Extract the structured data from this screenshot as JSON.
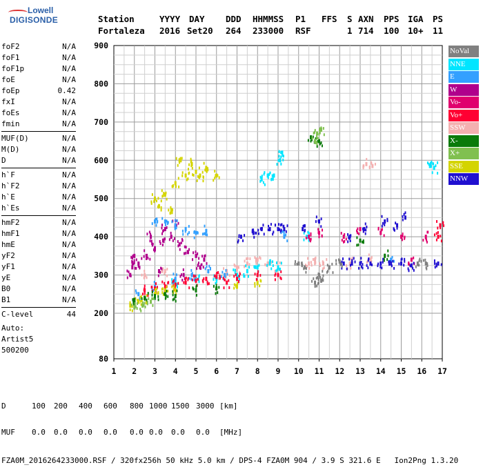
{
  "logo": {
    "line1": "Lowell",
    "line2": "DIGISONDE"
  },
  "header": {
    "row1": [
      "Station",
      "YYYY",
      "DAY",
      "DDD",
      "HHMMSS",
      "P1",
      "FFS",
      "S",
      "AXN",
      "PPS",
      "IGA",
      "PS"
    ],
    "row2": [
      "Fortaleza",
      "2016",
      "Set20",
      "264",
      "233000",
      "RSF",
      "1",
      "714",
      "100",
      "10+",
      "11"
    ]
  },
  "params": {
    "group1": [
      {
        "label": "foF2",
        "value": "N/A"
      },
      {
        "label": "foF1",
        "value": "N/A"
      },
      {
        "label": "foF1p",
        "value": "N/A"
      },
      {
        "label": "foE",
        "value": "N/A"
      },
      {
        "label": "foEp",
        "value": "0.42"
      },
      {
        "label": "fxI",
        "value": "N/A"
      },
      {
        "label": "foEs",
        "value": "N/A"
      },
      {
        "label": "fmin",
        "value": "N/A"
      }
    ],
    "group2": [
      {
        "label": "MUF(D)",
        "value": "N/A"
      },
      {
        "label": "M(D)",
        "value": "N/A"
      },
      {
        "label": "D",
        "value": "N/A"
      }
    ],
    "group3": [
      {
        "label": "h`F",
        "value": "N/A"
      },
      {
        "label": "h`F2",
        "value": "N/A"
      },
      {
        "label": "h`E",
        "value": "N/A"
      },
      {
        "label": "h`Es",
        "value": "N/A"
      }
    ],
    "group4": [
      {
        "label": "hmF2",
        "value": "N/A"
      },
      {
        "label": "hmF1",
        "value": "N/A"
      },
      {
        "label": "hmE",
        "value": "N/A"
      },
      {
        "label": "yF2",
        "value": "N/A"
      },
      {
        "label": "yF1",
        "value": "N/A"
      },
      {
        "label": "yE",
        "value": "N/A"
      },
      {
        "label": "B0",
        "value": "N/A"
      },
      {
        "label": "B1",
        "value": "N/A"
      }
    ],
    "clevel": {
      "label": "C-level",
      "value": "44"
    },
    "auto": [
      "Auto:",
      "Artist5",
      "500200"
    ]
  },
  "legend": [
    {
      "label": "NoVal",
      "bg": "#808080",
      "fg": "#ffffff"
    },
    {
      "label": "NNE",
      "bg": "#00e5ff",
      "fg": "#ffffff"
    },
    {
      "label": "E",
      "bg": "#33a0ff",
      "fg": "#ffffff"
    },
    {
      "label": "W",
      "bg": "#b0008c",
      "fg": "#ffffff"
    },
    {
      "label": "Vo-",
      "bg": "#e0006e",
      "fg": "#ffffff"
    },
    {
      "label": "Vo+",
      "bg": "#ff0033",
      "fg": "#ffffff"
    },
    {
      "label": "SSW",
      "bg": "#f4b0b0",
      "fg": "#ffffff"
    },
    {
      "label": "X-",
      "bg": "#0a7a0a",
      "fg": "#ffffff"
    },
    {
      "label": "X+",
      "bg": "#80c050",
      "fg": "#ffffff"
    },
    {
      "label": "SSE",
      "bg": "#d4d400",
      "fg": "#ffffff"
    },
    {
      "label": "NNW",
      "bg": "#2010d0",
      "fg": "#ffffff"
    }
  ],
  "bottom": {
    "row1": [
      "D",
      "100",
      "200",
      "400",
      "600",
      "800",
      "1000",
      "1500",
      "3000",
      "[km]"
    ],
    "row2": [
      "MUF",
      "0.0",
      "0.0",
      "0.0",
      "0.0",
      "0.0",
      "0.0",
      "0.0",
      "0.0",
      "[MHz]"
    ],
    "footer": "FZA0M_2016264233000.RSF / 320fx256h 50 kHz 5.0 km / DPS-4 FZA0M 904 / 3.9 S 321.6 E   Ion2Png 1.3.20"
  },
  "chart_data": {
    "type": "scatter",
    "x_ticks": [
      "1",
      "2",
      "3",
      "4",
      "5",
      "6",
      "7",
      "8",
      "9",
      "10",
      "11",
      "12",
      "13",
      "14",
      "15",
      "16",
      "17"
    ],
    "y_ticks": [
      "80",
      "200",
      "300",
      "400",
      "500",
      "600",
      "700",
      "800",
      "900"
    ],
    "xlim": [
      1,
      17
    ],
    "ylim": [
      80,
      900
    ],
    "y_scale": "non-linear (80 at bottom, 200..900 evenly spaced)",
    "grid": true,
    "legend_placement": "right",
    "clusters": [
      {
        "name": "W",
        "color": "#b0008c",
        "points": [
          [
            1.8,
            300
          ],
          [
            2.2,
            330
          ],
          [
            2.6,
            350
          ],
          [
            3.0,
            370
          ],
          [
            3.4,
            390
          ],
          [
            3.8,
            400
          ],
          [
            4.2,
            380
          ],
          [
            4.6,
            360
          ],
          [
            5.0,
            350
          ],
          [
            5.4,
            340
          ],
          [
            2.0,
            350
          ],
          [
            2.8,
            400
          ],
          [
            3.5,
            420
          ],
          [
            4.0,
            430
          ],
          [
            1.9,
            320
          ],
          [
            3.2,
            310
          ],
          [
            4.4,
            300
          ],
          [
            5.2,
            320
          ]
        ]
      },
      {
        "name": "SSW",
        "color": "#f4b0b0",
        "points": [
          [
            6,
            300
          ],
          [
            6.5,
            310
          ],
          [
            7,
            320
          ],
          [
            7.5,
            330
          ],
          [
            8,
            340
          ],
          [
            8.5,
            330
          ],
          [
            9,
            320
          ],
          [
            10.5,
            330
          ],
          [
            10.8,
            340
          ],
          [
            11.2,
            330
          ],
          [
            12.5,
            330
          ],
          [
            13.5,
            340
          ],
          [
            13.3,
            590
          ],
          [
            13.6,
            585
          ],
          [
            2.5,
            300
          ],
          [
            3.5,
            310
          ]
        ]
      },
      {
        "name": "NNE",
        "color": "#00e5ff",
        "points": [
          [
            4,
            280
          ],
          [
            5,
            290
          ],
          [
            6,
            290
          ],
          [
            7,
            300
          ],
          [
            7.5,
            310
          ],
          [
            8,
            320
          ],
          [
            8.6,
            330
          ],
          [
            9,
            320
          ],
          [
            8.2,
            550
          ],
          [
            8.5,
            560
          ],
          [
            8.8,
            560
          ],
          [
            9.2,
            620
          ],
          [
            9.1,
            600
          ],
          [
            16.4,
            585
          ],
          [
            16.6,
            580
          ],
          [
            10.4,
            400
          ]
        ]
      },
      {
        "name": "E",
        "color": "#33a0ff",
        "points": [
          [
            2.2,
            250
          ],
          [
            3,
            270
          ],
          [
            4,
            290
          ],
          [
            4.8,
            300
          ],
          [
            5.6,
            310
          ],
          [
            6.4,
            300
          ],
          [
            3,
            440
          ],
          [
            3.5,
            440
          ],
          [
            4,
            430
          ],
          [
            4.5,
            420
          ],
          [
            5,
            410
          ],
          [
            5.5,
            415
          ],
          [
            9.3,
            400
          ],
          [
            14.5,
            340
          ]
        ]
      },
      {
        "name": "Vo+",
        "color": "#ff0033",
        "points": [
          [
            2.5,
            260
          ],
          [
            3,
            265
          ],
          [
            3.5,
            270
          ],
          [
            4,
            275
          ],
          [
            4.5,
            280
          ],
          [
            5,
            285
          ],
          [
            5.5,
            290
          ],
          [
            6,
            295
          ],
          [
            6.5,
            280
          ],
          [
            7,
            290
          ],
          [
            8,
            300
          ],
          [
            9,
            300
          ],
          [
            16.8,
            400
          ],
          [
            16.9,
            430
          ]
        ]
      },
      {
        "name": "Vo-",
        "color": "#e0006e",
        "points": [
          [
            10.5,
            400
          ],
          [
            11,
            410
          ],
          [
            12.2,
            400
          ],
          [
            13,
            420
          ],
          [
            14,
            410
          ],
          [
            15,
            400
          ],
          [
            15.5,
            340
          ],
          [
            16.2,
            400
          ]
        ]
      },
      {
        "name": "SSE",
        "color": "#d4d400",
        "points": [
          [
            1.8,
            220
          ],
          [
            2.2,
            230
          ],
          [
            2.5,
            240
          ],
          [
            3,
            250
          ],
          [
            3.5,
            260
          ],
          [
            4,
            260
          ],
          [
            3,
            500
          ],
          [
            3.5,
            510
          ],
          [
            4,
            540
          ],
          [
            4.5,
            560
          ],
          [
            5,
            570
          ],
          [
            5.5,
            580
          ],
          [
            4.2,
            600
          ],
          [
            4.8,
            590
          ],
          [
            5.2,
            560
          ],
          [
            6,
            560
          ],
          [
            3.8,
            470
          ],
          [
            3.2,
            480
          ],
          [
            7,
            270
          ],
          [
            8,
            280
          ]
        ]
      },
      {
        "name": "X-",
        "color": "#0a7a0a",
        "points": [
          [
            2,
            235
          ],
          [
            2.5,
            240
          ],
          [
            3,
            245
          ],
          [
            3.5,
            250
          ],
          [
            4,
            245
          ],
          [
            5,
            260
          ],
          [
            6,
            265
          ],
          [
            10.6,
            660
          ],
          [
            11,
            650
          ],
          [
            13,
            390
          ],
          [
            14.2,
            350
          ]
        ]
      },
      {
        "name": "X+",
        "color": "#80c050",
        "points": [
          [
            2,
            215
          ],
          [
            2.4,
            220
          ],
          [
            2.8,
            230
          ],
          [
            10.8,
            650
          ],
          [
            10.9,
            670
          ],
          [
            11.1,
            680
          ]
        ]
      },
      {
        "name": "NNW",
        "color": "#2010d0",
        "points": [
          [
            7.8,
            410
          ],
          [
            8.2,
            420
          ],
          [
            8.6,
            420
          ],
          [
            9,
            420
          ],
          [
            9.3,
            420
          ],
          [
            12.2,
            330
          ],
          [
            12.6,
            330
          ],
          [
            13,
            330
          ],
          [
            13.5,
            330
          ],
          [
            14,
            330
          ],
          [
            14.5,
            330
          ],
          [
            15,
            330
          ],
          [
            15.5,
            325
          ],
          [
            12.5,
            400
          ],
          [
            13.2,
            420
          ],
          [
            14.2,
            440
          ],
          [
            14.8,
            430
          ],
          [
            15.2,
            450
          ],
          [
            10.2,
            420
          ],
          [
            11,
            440
          ],
          [
            16.8,
            330
          ],
          [
            7.2,
            400
          ]
        ]
      },
      {
        "name": "NoVal",
        "color": "#808080",
        "points": [
          [
            10,
            330
          ],
          [
            10.3,
            320
          ],
          [
            11,
            300
          ],
          [
            11.5,
            320
          ],
          [
            12,
            335
          ],
          [
            15.8,
            330
          ],
          [
            16.2,
            330
          ],
          [
            10.8,
            280
          ],
          [
            11.1,
            285
          ]
        ]
      }
    ]
  }
}
